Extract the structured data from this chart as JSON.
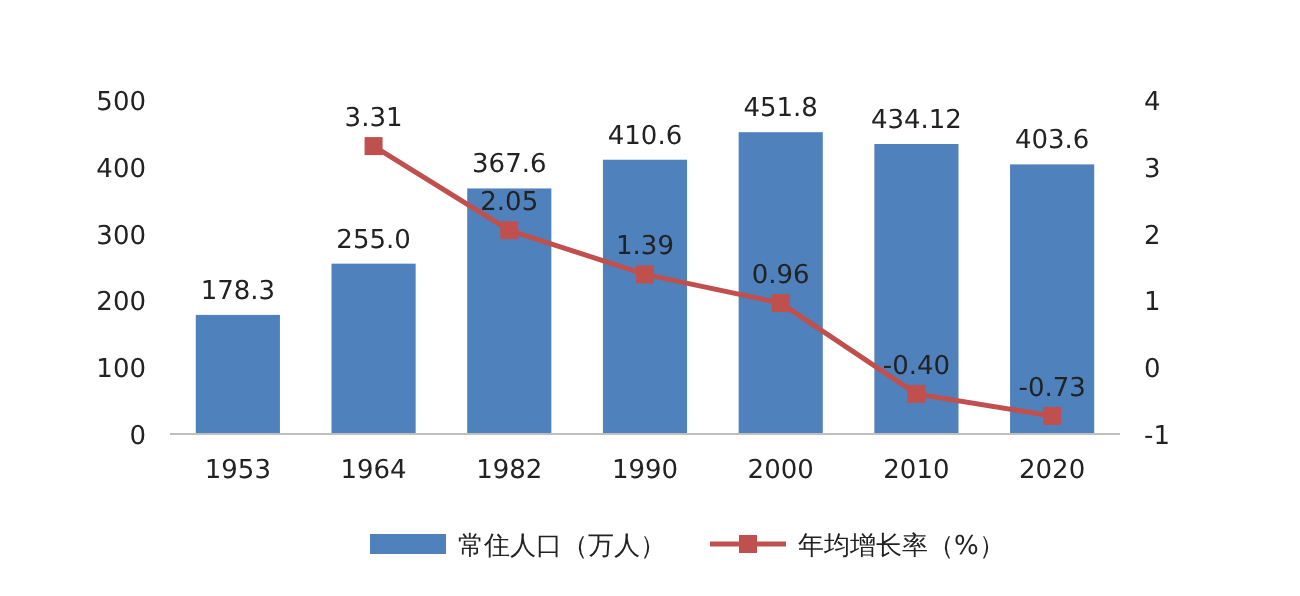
{
  "chart_data": {
    "type": "bar",
    "categories": [
      "1953",
      "1964",
      "1982",
      "1990",
      "2000",
      "2010",
      "2020"
    ],
    "series": [
      {
        "name": "常住人口（万人）",
        "color": "#4f81bd",
        "values": [
          178.3,
          255.0,
          367.6,
          410.6,
          451.8,
          434.12,
          403.6
        ],
        "value_labels": [
          "178.3",
          "255.0",
          "367.6",
          "410.6",
          "451.8",
          "434.12",
          "403.6"
        ]
      },
      {
        "name": "年均增长率（%）",
        "type": "line",
        "axis": "y2",
        "color": "#c0504d",
        "marker": "square",
        "values": [
          null,
          3.31,
          2.05,
          1.39,
          0.96,
          -0.4,
          -0.73
        ],
        "value_labels": [
          null,
          "3.31",
          "2.05",
          "1.39",
          "0.96",
          "-0.40",
          "-0.73"
        ]
      }
    ],
    "ylim": [
      0,
      500
    ],
    "yticks": [
      0,
      100,
      200,
      300,
      400,
      500
    ],
    "y2lim": [
      -1,
      4
    ],
    "y2ticks": [
      -1,
      0,
      1,
      2,
      3,
      4
    ],
    "grid": false,
    "legend": "bottom"
  }
}
